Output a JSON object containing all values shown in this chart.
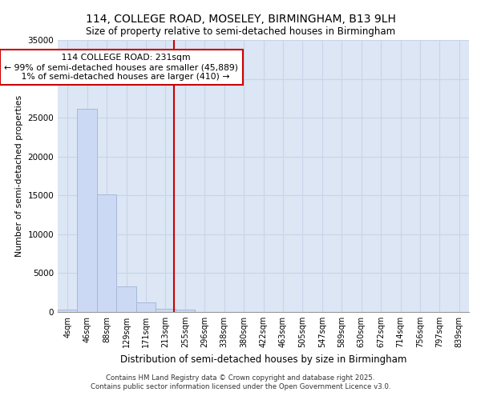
{
  "title_line1": "114, COLLEGE ROAD, MOSELEY, BIRMINGHAM, B13 9LH",
  "title_line2": "Size of property relative to semi-detached houses in Birmingham",
  "xlabel": "Distribution of semi-detached houses by size in Birmingham",
  "ylabel": "Number of semi-detached properties",
  "footer_line1": "Contains HM Land Registry data © Crown copyright and database right 2025.",
  "footer_line2": "Contains public sector information licensed under the Open Government Licence v3.0.",
  "bin_labels": [
    "4sqm",
    "46sqm",
    "88sqm",
    "129sqm",
    "171sqm",
    "213sqm",
    "255sqm",
    "296sqm",
    "338sqm",
    "380sqm",
    "422sqm",
    "463sqm",
    "505sqm",
    "547sqm",
    "589sqm",
    "630sqm",
    "672sqm",
    "714sqm",
    "756sqm",
    "797sqm",
    "839sqm"
  ],
  "bar_values": [
    350,
    26100,
    15100,
    3250,
    1250,
    450,
    280,
    0,
    0,
    0,
    0,
    0,
    0,
    0,
    0,
    0,
    0,
    0,
    0,
    0,
    0
  ],
  "bar_color": "#ccd9f5",
  "bar_edge_color": "#a8b8d8",
  "property_label": "114 COLLEGE ROAD: 231sqm",
  "pct_smaller": 99,
  "count_smaller": 45889,
  "pct_larger": 1,
  "count_larger": 410,
  "vline_color": "#cc0000",
  "ylim": [
    0,
    35000
  ],
  "yticks": [
    0,
    5000,
    10000,
    15000,
    20000,
    25000,
    30000,
    35000
  ],
  "grid_color": "#c8d4e8",
  "background_color": "#dce6f5"
}
